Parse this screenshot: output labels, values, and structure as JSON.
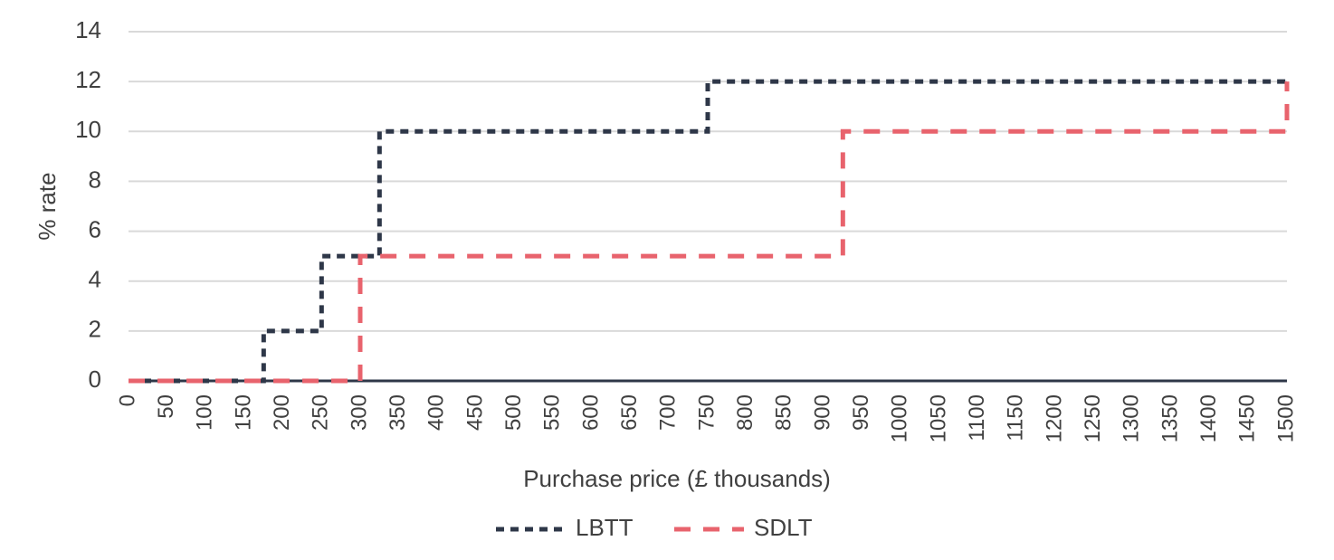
{
  "chart_data": {
    "type": "line",
    "x_label": "Purchase price (£ thousands)",
    "y_label": "% rate",
    "xlim": [
      0,
      1500
    ],
    "xticks": [
      0,
      50,
      100,
      150,
      200,
      250,
      300,
      350,
      400,
      450,
      500,
      550,
      600,
      650,
      700,
      750,
      800,
      850,
      900,
      950,
      1000,
      1050,
      1100,
      1150,
      1200,
      1250,
      1300,
      1350,
      1400,
      1450,
      1500
    ],
    "ylim": [
      0,
      14
    ],
    "yticks": [
      0,
      2,
      4,
      6,
      8,
      10,
      12,
      14
    ],
    "grid": true,
    "legend": "bottom",
    "series": [
      {
        "name": "LBTT",
        "color": "#2e3748",
        "x": [
          0,
          175,
          175,
          250,
          250,
          325,
          325,
          750,
          750,
          1500
        ],
        "values": [
          0,
          0,
          2,
          2,
          5,
          5,
          10,
          10,
          12,
          12
        ]
      },
      {
        "name": "SDLT",
        "color": "#e8636d",
        "x": [
          0,
          300,
          300,
          925,
          925,
          1500,
          1500
        ],
        "values": [
          0,
          0,
          5,
          5,
          10,
          10,
          12
        ]
      }
    ]
  }
}
